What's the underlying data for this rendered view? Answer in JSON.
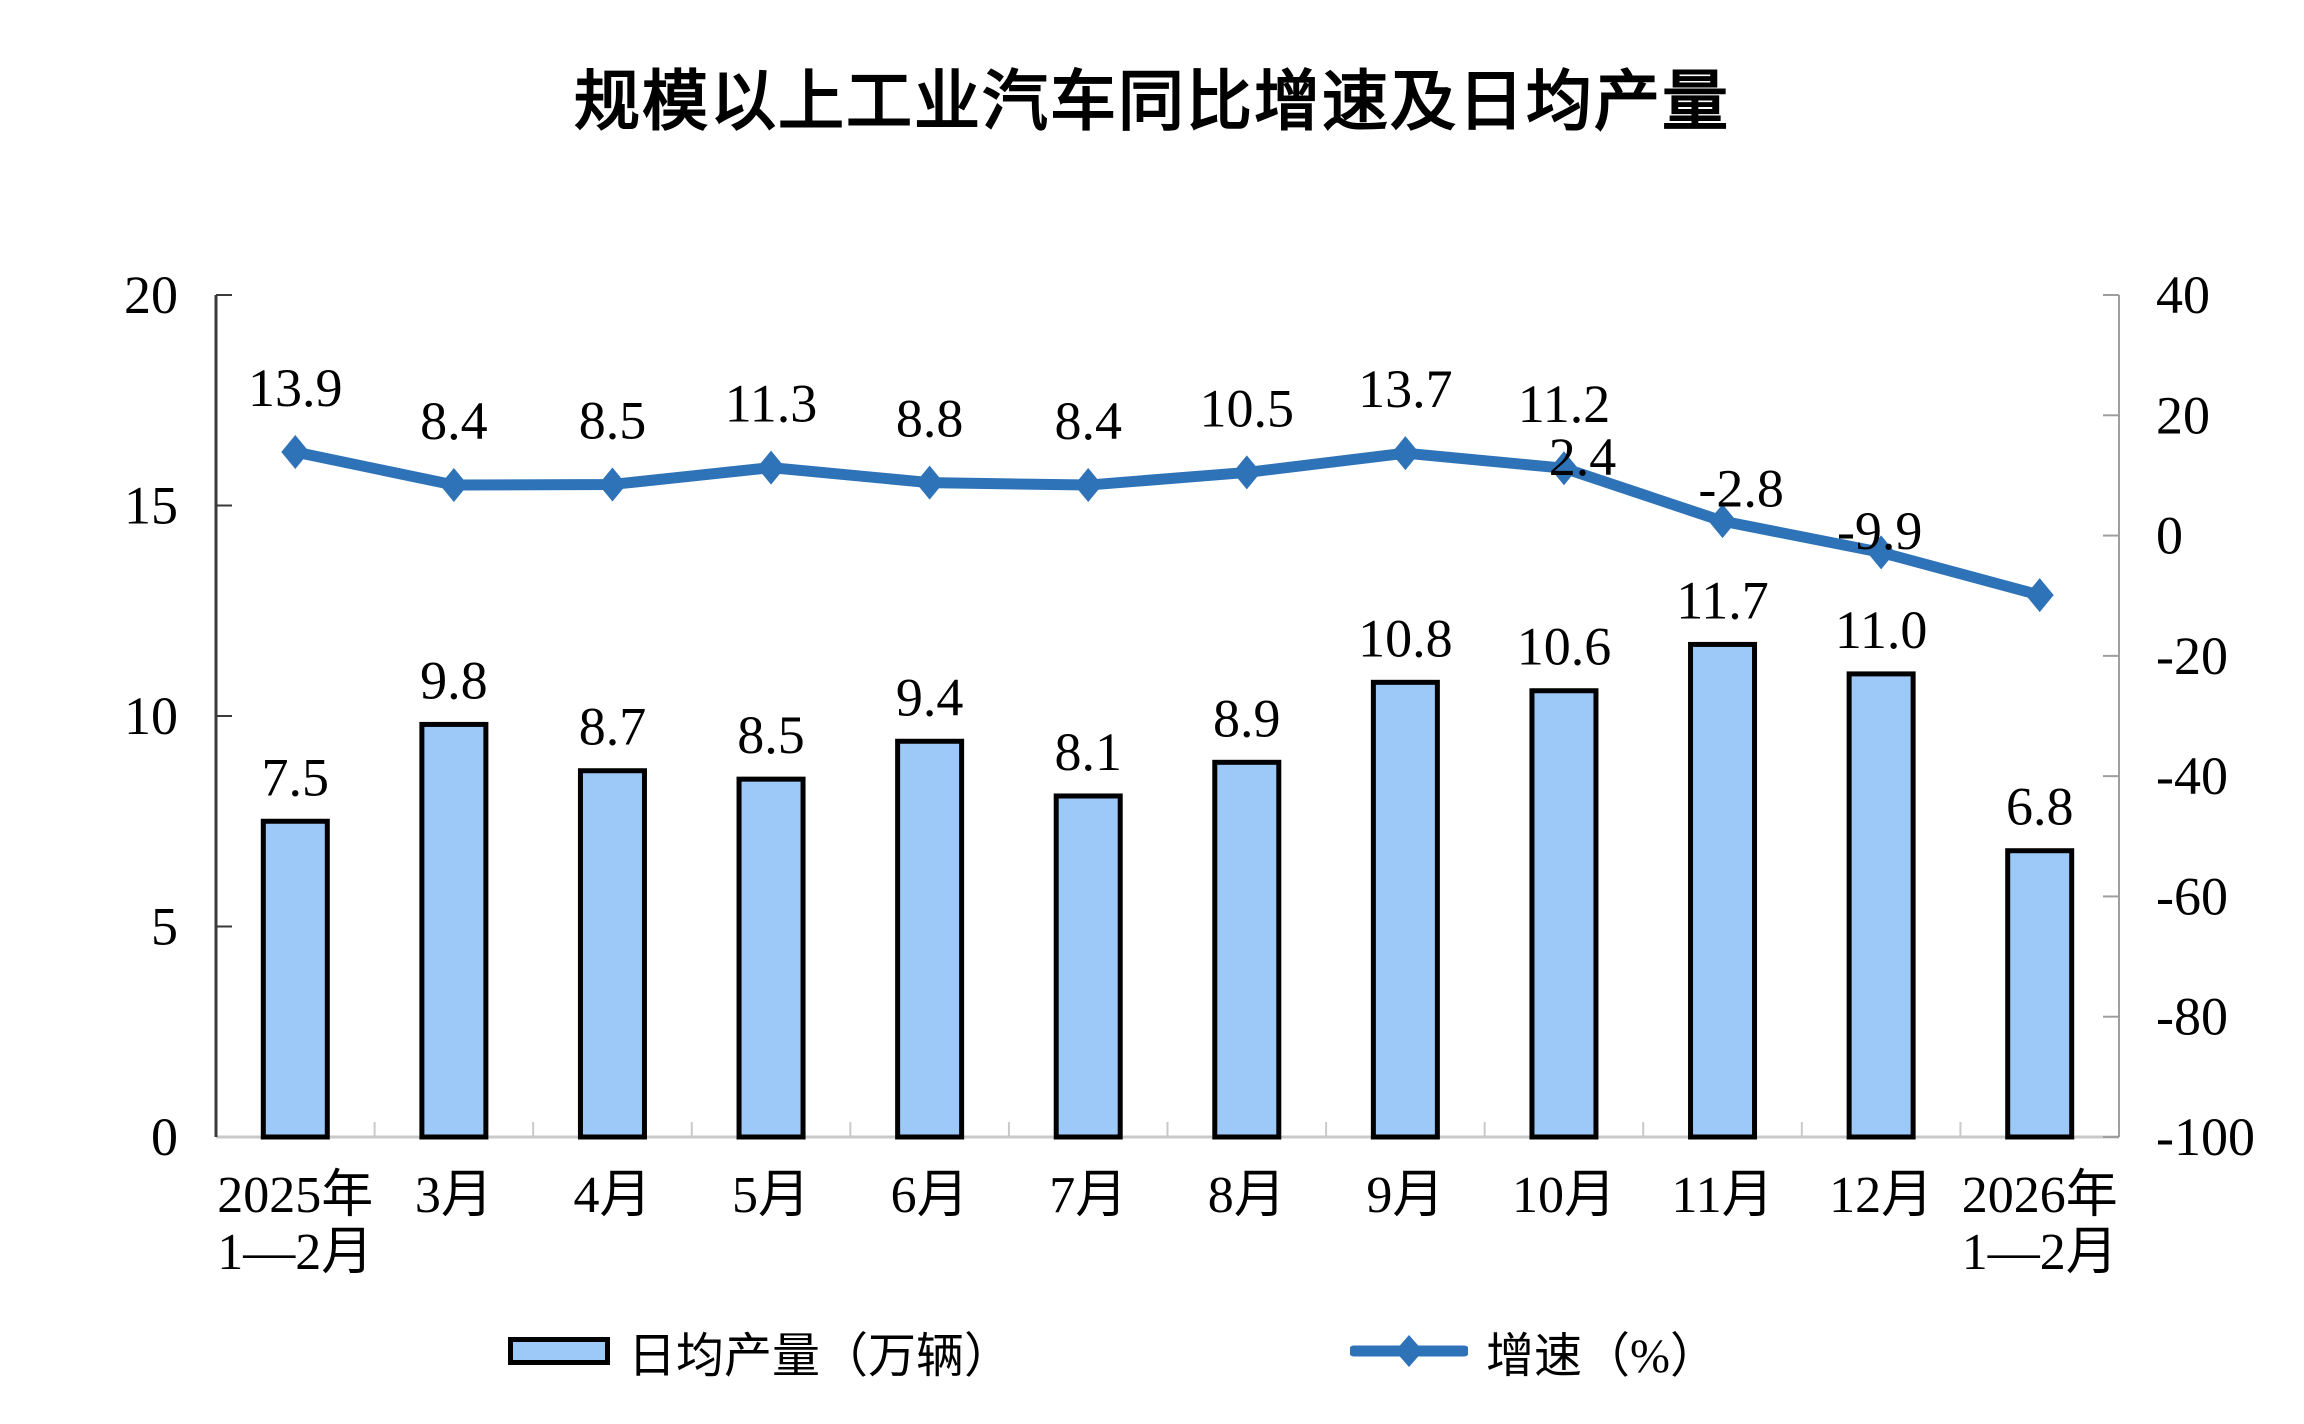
{
  "title": "规模以上工业汽车同比增速及日均产量",
  "chart_data": {
    "type": "combo",
    "subtype": "bar-line-dual-axis",
    "title": "规模以上工业汽车同比增速及日均产量",
    "categories": [
      "2025年\n1—2月",
      "3月",
      "4月",
      "5月",
      "6月",
      "7月",
      "8月",
      "9月",
      "10月",
      "11月",
      "12月",
      "2026年\n1—2月"
    ],
    "series": [
      {
        "name": "日均产量（万辆）",
        "type": "bar",
        "axis": "left",
        "unit": "万辆",
        "values": [
          7.5,
          9.8,
          8.7,
          8.5,
          9.4,
          8.1,
          8.9,
          10.8,
          10.6,
          11.7,
          11.0,
          6.8
        ],
        "fill": "#9DC9F8",
        "stroke": "#000000"
      },
      {
        "name": "增速（%）",
        "type": "line",
        "axis": "right",
        "unit": "%",
        "values": [
          13.9,
          8.4,
          8.5,
          11.3,
          8.8,
          8.4,
          10.5,
          13.7,
          11.2,
          2.4,
          -2.8,
          -9.9
        ],
        "color": "#2E73B8",
        "marker": "diamond"
      }
    ],
    "left_axis": {
      "min": 0,
      "max": 20,
      "ticks": [
        20,
        15,
        10,
        5,
        0
      ]
    },
    "right_axis": {
      "min": -100,
      "max": 40,
      "ticks": [
        40,
        20,
        0,
        -20,
        -40,
        -60,
        -80,
        -100
      ]
    },
    "legend_position": "bottom",
    "grid": false,
    "data_labels": true
  }
}
